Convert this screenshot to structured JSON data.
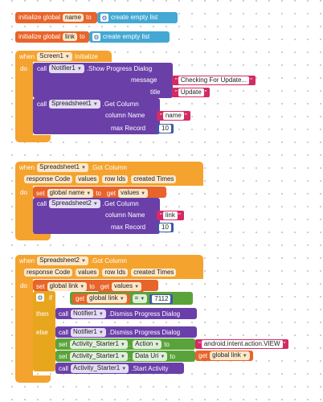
{
  "colors": {
    "orange": "#e8642a",
    "event": "#f4a32e",
    "purple": "#6a3fa8",
    "green": "#5aa33a",
    "control": "#e8a61f",
    "string": "#d42a65",
    "number": "#3c5aa6",
    "list": "#43a8d3"
  },
  "globals": [
    {
      "prefix": "initialize global",
      "name": "name",
      "to": "to",
      "list_label": "create empty list"
    },
    {
      "prefix": "initialize global",
      "name": "link",
      "to": "to",
      "list_label": "create empty list"
    }
  ],
  "event1": {
    "when": "when",
    "component": "Screen1",
    "event": "Initialize",
    "do": "do",
    "call1": {
      "call": "call",
      "component": "Notifier1",
      "method": ".Show Progress Dialog",
      "message_label": "message",
      "message_value": "Checking For Update...",
      "title_label": "title",
      "title_value": "Update"
    },
    "call2": {
      "call": "call",
      "component": "Spreadsheet1",
      "method": ".Get Column",
      "column_label": "column Name",
      "column_value": "name",
      "max_label": "max Record",
      "max_value": "10"
    }
  },
  "event2": {
    "when": "when",
    "component": "Spreadsheet1",
    "event": ".Got Column",
    "do": "do",
    "params": [
      "response Code",
      "values",
      "row Ids",
      "created Times"
    ],
    "set": {
      "set": "set",
      "var": "global name",
      "to": "to",
      "get": "get",
      "get_var": "values"
    },
    "call": {
      "call": "call",
      "component": "Spreadsheet2",
      "method": ".Get Column",
      "column_label": "column Name",
      "column_value": "link",
      "max_label": "max Record",
      "max_value": "10"
    }
  },
  "event3": {
    "when": "when",
    "component": "Spreadsheet2",
    "event": ".Got Column",
    "do": "do",
    "params": [
      "response Code",
      "values",
      "row Ids",
      "created Times"
    ],
    "set": {
      "set": "set",
      "var": "global link",
      "to": "to",
      "get": "get",
      "get_var": "values"
    },
    "if": {
      "if": "if",
      "get": "get",
      "var": "global link",
      "op": "=",
      "value": "7112"
    },
    "then": {
      "label": "then",
      "call": "call",
      "component": "Notifier1",
      "method": ".Dismiss Progress Dialog"
    },
    "else": {
      "label": "else",
      "c1": {
        "call": "call",
        "component": "Notifier1",
        "method": ".Dismiss Progress Dialog"
      },
      "s1": {
        "set": "set",
        "component": "Activity_Starter1",
        "prop": "Action",
        "to": "to",
        "value": "android.intent.action.VIEW"
      },
      "s2": {
        "set": "set",
        "component": "Activity_Starter1",
        "prop": "Data Uri",
        "to": "to",
        "get": "get",
        "var": "global link"
      },
      "c2": {
        "call": "call",
        "component": "Activity_Starter1",
        "method": ".Start Activity"
      }
    }
  }
}
